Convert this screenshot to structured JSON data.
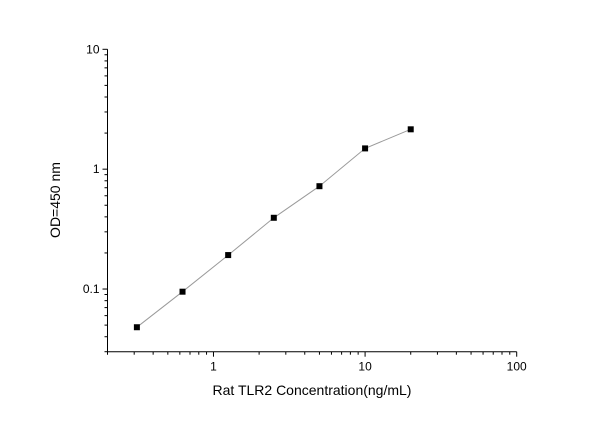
{
  "chart_data": {
    "type": "line",
    "title": "",
    "xlabel": "Rat TLR2 Concentration(ng/mL)",
    "ylabel": "OD=450 nm",
    "x_scale": "log",
    "y_scale": "log",
    "xlim": [
      0.2,
      100
    ],
    "ylim": [
      0.03,
      10
    ],
    "x_ticks": [
      {
        "value": 1,
        "label": "1"
      },
      {
        "value": 10,
        "label": "10"
      },
      {
        "value": 100,
        "label": "100"
      }
    ],
    "y_ticks": [
      {
        "value": 0.1,
        "label": "0.1"
      },
      {
        "value": 1,
        "label": "1"
      },
      {
        "value": 10,
        "label": "10"
      }
    ],
    "grid": false,
    "series": [
      {
        "marker": "square",
        "line_color": "#9a9a9a",
        "marker_color": "#000000",
        "x": [
          0.3125,
          0.625,
          1.25,
          2.5,
          5,
          10,
          20
        ],
        "y": [
          0.048,
          0.095,
          0.192,
          0.393,
          0.721,
          1.49,
          2.15
        ]
      }
    ]
  }
}
